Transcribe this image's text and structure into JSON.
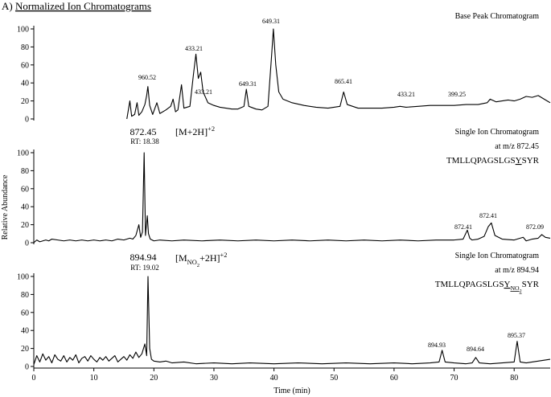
{
  "title_prefix": "A)",
  "title": "Normalized Ion Chromatograms",
  "chart_data": [
    {
      "type": "line",
      "color": "#000000",
      "label": "Base Peak Chromatogram",
      "x": [
        15.5,
        16,
        16.3,
        16.8,
        17.2,
        17.5,
        18,
        18.5,
        18.8,
        19,
        19.3,
        19.8,
        20.5,
        21,
        22,
        22.8,
        23.2,
        23.6,
        24,
        24.6,
        25,
        26,
        26.6,
        27,
        27.4,
        27.8,
        28.2,
        29,
        30,
        31,
        32,
        33,
        34,
        35,
        35.4,
        35.8,
        37,
        38,
        39,
        39.6,
        39.9,
        40.3,
        40.8,
        41.5,
        43,
        45,
        47,
        49,
        51,
        51.6,
        52.2,
        54,
        56,
        58,
        60,
        61,
        62,
        64,
        66,
        68,
        70,
        72,
        74,
        75.5,
        76,
        77,
        79,
        80,
        81,
        82,
        83,
        84,
        85,
        86
      ],
      "values": [
        0,
        20,
        3,
        5,
        18,
        4,
        8,
        16,
        26,
        36,
        15,
        5,
        18,
        6,
        10,
        14,
        22,
        8,
        10,
        38,
        12,
        14,
        50,
        72,
        45,
        52,
        30,
        18,
        15,
        13,
        12,
        11,
        11,
        14,
        33,
        14,
        11,
        10,
        14,
        70,
        100,
        60,
        30,
        22,
        18,
        15,
        13,
        12,
        14,
        30,
        16,
        12,
        12,
        12,
        13,
        14,
        13,
        14,
        15,
        15,
        15,
        16,
        16,
        18,
        22,
        19,
        21,
        20,
        22,
        25,
        24,
        26,
        22,
        18
      ],
      "xlim": [
        0,
        86
      ],
      "ylim": [
        0,
        100
      ],
      "yticks": [
        0,
        20,
        40,
        60,
        80,
        100
      ],
      "annotations": [
        "960.52",
        "433.21",
        "433.21",
        "649.31",
        "649.31",
        "865.41",
        "433.21",
        "399.25"
      ]
    },
    {
      "type": "line",
      "color": "#000000",
      "label": "Single Ion Chromatogram",
      "subtitle": "at m/z 872.45",
      "sequence": [
        {
          "text": "TMLLQPAGSLGS",
          "shift": 0,
          "underline": false
        },
        {
          "text": "Y",
          "shift": 0,
          "underline": true
        },
        {
          "text": "SYR",
          "shift": 0,
          "underline": false
        }
      ],
      "peak_label": "872.45",
      "peak_rt": "RT: 18.38",
      "ion_label": [
        {
          "text": "[M+2H]",
          "shift": 0,
          "underline": false
        },
        {
          "text": "+2",
          "shift": -1,
          "underline": false
        }
      ],
      "y_label": "Relative Abundance",
      "x": [
        0,
        0.5,
        1,
        1.5,
        2,
        2.5,
        3,
        4,
        5,
        6,
        7,
        8,
        9,
        10,
        11,
        12,
        13,
        14,
        15,
        16,
        16.5,
        17,
        17.5,
        17.8,
        18.1,
        18.38,
        18.6,
        18.9,
        19.1,
        19.4,
        20,
        21,
        23,
        25,
        28,
        31,
        34,
        37,
        40,
        43,
        46,
        49,
        52,
        55,
        58,
        61,
        64,
        67,
        70,
        71.5,
        72.2,
        72.6,
        73,
        74,
        75,
        75.7,
        76.2,
        76.8,
        78,
        80,
        81.5,
        82,
        83,
        84,
        84.6,
        85.2,
        86
      ],
      "values": [
        0,
        3,
        1,
        2,
        3,
        2,
        4,
        3,
        2,
        3,
        2,
        3,
        2,
        3,
        2,
        3,
        2,
        4,
        3,
        5,
        4,
        8,
        20,
        6,
        12,
        100,
        8,
        30,
        10,
        4,
        2,
        3,
        2,
        3,
        2,
        3,
        2,
        3,
        2,
        3,
        2,
        3,
        2,
        3,
        2,
        3,
        2,
        3,
        3,
        4,
        14,
        5,
        3,
        4,
        7,
        18,
        22,
        8,
        4,
        3,
        6,
        2,
        4,
        5,
        9,
        6,
        5
      ],
      "xlim": [
        0,
        86
      ],
      "ylim": [
        0,
        100
      ],
      "yticks": [
        0,
        20,
        40,
        60,
        80,
        100
      ],
      "annotations": [
        "872.41",
        "872.41",
        "872.09"
      ]
    },
    {
      "type": "line",
      "color": "#000000",
      "label": "Single Ion Chromatogram",
      "subtitle": "at m/z 894.94",
      "sequence": [
        {
          "text": "TMLLQPAGSLGS",
          "shift": 0,
          "underline": false
        },
        {
          "text": "Y",
          "shift": 0,
          "underline": true
        },
        {
          "text": "NO",
          "shift": 1,
          "underline": true
        },
        {
          "text": "2",
          "shift": 2,
          "underline": true
        },
        {
          "text": "SYR",
          "shift": 0,
          "underline": false
        }
      ],
      "peak_label": "894.94",
      "peak_rt": "RT: 19.02",
      "ion_label": [
        {
          "text": "[M",
          "shift": 0,
          "underline": false
        },
        {
          "text": "NO",
          "shift": 1,
          "underline": false
        },
        {
          "text": "2",
          "shift": 2,
          "underline": false
        },
        {
          "text": "+2H]",
          "shift": 0,
          "underline": false
        },
        {
          "text": "+2",
          "shift": -1,
          "underline": false
        }
      ],
      "x": [
        0,
        0.5,
        1,
        1.5,
        2,
        2.5,
        3,
        3.5,
        4,
        4.5,
        5,
        5.5,
        6,
        6.5,
        7,
        7.5,
        8,
        8.5,
        9,
        9.5,
        10,
        10.5,
        11,
        11.5,
        12,
        12.5,
        13,
        13.5,
        14,
        14.5,
        15,
        15.5,
        16,
        16.5,
        17,
        17.5,
        18,
        18.5,
        18.8,
        19.02,
        19.3,
        19.6,
        20,
        21,
        22,
        23,
        25,
        27,
        30,
        33,
        36,
        40,
        44,
        48,
        52,
        56,
        60,
        63,
        66,
        67.5,
        68,
        68.5,
        70,
        72,
        73,
        73.6,
        74.2,
        76,
        78,
        80,
        80.5,
        81,
        82,
        84,
        86
      ],
      "values": [
        2,
        12,
        5,
        14,
        7,
        11,
        4,
        13,
        8,
        6,
        12,
        5,
        10,
        7,
        13,
        4,
        9,
        11,
        6,
        12,
        8,
        5,
        10,
        7,
        11,
        6,
        9,
        12,
        5,
        8,
        11,
        7,
        13,
        9,
        16,
        10,
        14,
        25,
        12,
        100,
        20,
        8,
        6,
        5,
        6,
        4,
        5,
        3,
        4,
        3,
        4,
        3,
        4,
        3,
        4,
        3,
        4,
        3,
        4,
        5,
        18,
        5,
        4,
        3,
        4,
        10,
        4,
        3,
        4,
        5,
        28,
        5,
        4,
        6,
        8
      ],
      "xlim": [
        0,
        86
      ],
      "ylim": [
        0,
        100
      ],
      "yticks": [
        0,
        20,
        40,
        60,
        80,
        100
      ],
      "xticks": [
        0,
        10,
        20,
        30,
        40,
        50,
        60,
        70,
        80
      ],
      "x_label": "Time (min)",
      "annotations": [
        "894.93",
        "894.64",
        "895.37"
      ]
    }
  ]
}
